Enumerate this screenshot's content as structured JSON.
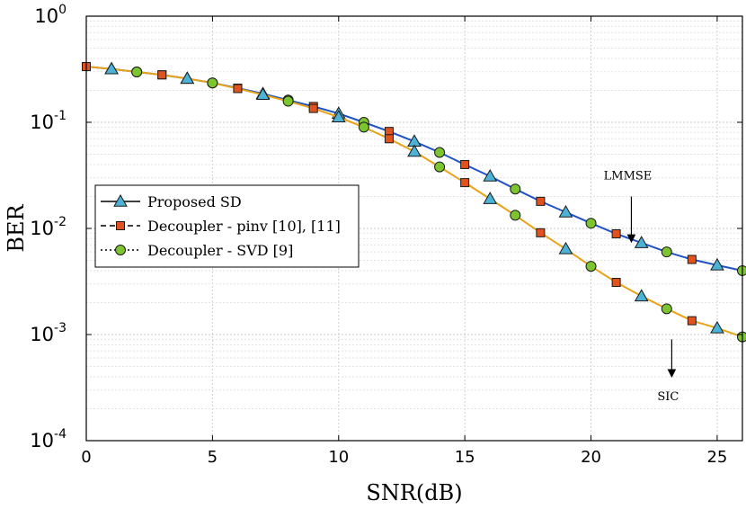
{
  "chart_data": {
    "type": "line",
    "xlabel": "SNR(dB)",
    "ylabel": "BER",
    "xlim": [
      0,
      26
    ],
    "ylim": [
      0.0001,
      1
    ],
    "yscale": "log",
    "grid": true,
    "xticks": [
      0,
      5,
      10,
      15,
      20,
      25
    ],
    "xtick_labels": [
      "0",
      "5",
      "10",
      "15",
      "20",
      "25"
    ],
    "yticks": [
      {
        "value": 1,
        "base": "10",
        "exp": "0"
      },
      {
        "value": 0.1,
        "base": "10",
        "exp": "-1"
      },
      {
        "value": 0.01,
        "base": "10",
        "exp": "-2"
      },
      {
        "value": 0.001,
        "base": "10",
        "exp": "-3"
      },
      {
        "value": 0.0001,
        "base": "10",
        "exp": "-4"
      }
    ],
    "legend": {
      "placement": "middle-left",
      "entries": [
        {
          "label": "Proposed SD",
          "marker": "triangle",
          "dash": "solid"
        },
        {
          "label": "Decoupler - pinv [10], [11]",
          "marker": "square",
          "dash": "dashed"
        },
        {
          "label": "Decoupler - SVD [9]",
          "marker": "circle",
          "dash": "dotted"
        }
      ]
    },
    "series": [
      {
        "name": "LMMSE",
        "color": "#1f52c6",
        "x": [
          0,
          1,
          2,
          3,
          4,
          5,
          6,
          7,
          8,
          9,
          10,
          11,
          12,
          13,
          14,
          15,
          16,
          17,
          18,
          19,
          20,
          21,
          22,
          23,
          24,
          25,
          26
        ],
        "y": [
          0.335,
          0.318,
          0.298,
          0.28,
          0.258,
          0.235,
          0.21,
          0.186,
          0.162,
          0.141,
          0.121,
          0.1,
          0.082,
          0.066,
          0.052,
          0.04,
          0.031,
          0.0235,
          0.018,
          0.0142,
          0.0112,
          0.0089,
          0.0073,
          0.006,
          0.0051,
          0.0045,
          0.004
        ],
        "markers": [
          "square",
          "triangle",
          "circle",
          "square",
          "triangle",
          "circle",
          "square",
          "triangle",
          "circle",
          "square",
          "triangle",
          "circle",
          "square",
          "triangle",
          "circle",
          "square",
          "triangle",
          "circle",
          "square",
          "triangle",
          "circle",
          "square",
          "triangle",
          "circle",
          "square",
          "triangle",
          "circle"
        ]
      },
      {
        "name": "SIC",
        "color": "#e8a317",
        "x": [
          0,
          1,
          2,
          3,
          4,
          5,
          6,
          7,
          8,
          9,
          10,
          11,
          12,
          13,
          14,
          15,
          16,
          17,
          18,
          19,
          20,
          21,
          22,
          23,
          24,
          25,
          26
        ],
        "y": [
          0.335,
          0.318,
          0.298,
          0.28,
          0.258,
          0.235,
          0.208,
          0.182,
          0.158,
          0.135,
          0.112,
          0.09,
          0.07,
          0.053,
          0.038,
          0.027,
          0.019,
          0.0133,
          0.0091,
          0.0064,
          0.0044,
          0.0031,
          0.0023,
          0.00175,
          0.00135,
          0.00115,
          0.00095
        ],
        "markers": [
          "square",
          "triangle",
          "circle",
          "square",
          "triangle",
          "circle",
          "square",
          "triangle",
          "circle",
          "square",
          "triangle",
          "circle",
          "square",
          "triangle",
          "circle",
          "square",
          "triangle",
          "circle",
          "square",
          "triangle",
          "circle",
          "square",
          "triangle",
          "circle",
          "square",
          "triangle",
          "circle"
        ]
      }
    ],
    "annotations": [
      {
        "text": "LMMSE",
        "x": 21.6,
        "y": 0.029,
        "arrow_from": 0.02,
        "arrow_to": 0.008
      },
      {
        "text": "SIC",
        "x": 23.2,
        "y": 0.00024,
        "arrow_from": 0.0009,
        "arrow_to": 0.00043
      }
    ],
    "marker_colors": {
      "triangle": "#4db3d6",
      "square": "#e0531f",
      "circle": "#7cc52e"
    }
  }
}
